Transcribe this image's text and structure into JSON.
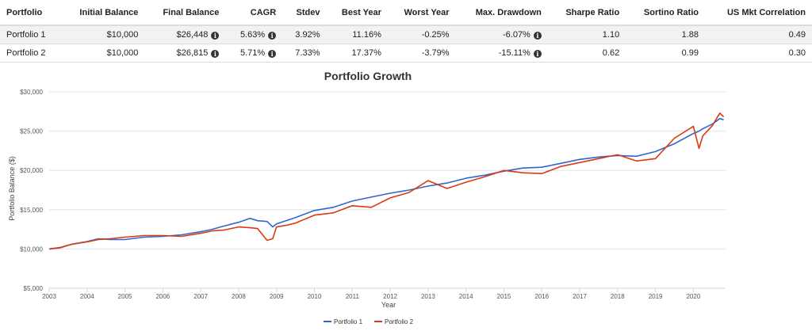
{
  "table": {
    "headers": [
      "Portfolio",
      "Initial Balance",
      "Final Balance",
      "CAGR",
      "Stdev",
      "Best Year",
      "Worst Year",
      "Max. Drawdown",
      "Sharpe Ratio",
      "Sortino Ratio",
      "US Mkt Correlation"
    ],
    "rows": [
      {
        "portfolio": "Portfolio 1",
        "initial": "$10,000",
        "final": "$26,448",
        "cagr": "5.63%",
        "stdev": "3.92%",
        "best": "11.16%",
        "worst": "-0.25%",
        "drawdown": "-6.07%",
        "sharpe": "1.10",
        "sortino": "1.88",
        "corr": "0.49"
      },
      {
        "portfolio": "Portfolio 2",
        "initial": "$10,000",
        "final": "$26,815",
        "cagr": "5.71%",
        "stdev": "7.33%",
        "best": "17.37%",
        "worst": "-3.79%",
        "drawdown": "-15.11%",
        "sharpe": "0.62",
        "sortino": "0.99",
        "corr": "0.30"
      }
    ],
    "info_icon": "info-circle-icon"
  },
  "chart_data": {
    "type": "line",
    "title": "Portfolio Growth",
    "xlabel": "Year",
    "ylabel": "Portfolio Balance ($)",
    "ylim": [
      5000,
      30000
    ],
    "xlim": [
      2003,
      2020.85
    ],
    "yticks": [
      "$5,000",
      "$10,000",
      "$15,000",
      "$20,000",
      "$25,000",
      "$30,000"
    ],
    "xticks": [
      "2003",
      "2004",
      "2005",
      "2006",
      "2007",
      "2008",
      "2009",
      "2010",
      "2011",
      "2012",
      "2013",
      "2014",
      "2015",
      "2016",
      "2017",
      "2018",
      "2019",
      "2020"
    ],
    "grid": true,
    "legend_position": "bottom",
    "series": [
      {
        "name": "Portfolio 1",
        "color": "#3366cc",
        "x": [
          2003.0,
          2003.3,
          2003.6,
          2004.0,
          2004.3,
          2004.6,
          2005.0,
          2005.5,
          2006.0,
          2006.5,
          2007.0,
          2007.3,
          2007.6,
          2008.0,
          2008.3,
          2008.5,
          2008.75,
          2008.9,
          2009.0,
          2009.25,
          2009.5,
          2010.0,
          2010.5,
          2011.0,
          2011.5,
          2012.0,
          2012.5,
          2013.0,
          2013.5,
          2014.0,
          2014.5,
          2015.0,
          2015.5,
          2016.0,
          2016.5,
          2017.0,
          2017.5,
          2018.0,
          2018.5,
          2019.0,
          2019.5,
          2020.0,
          2020.15,
          2020.25,
          2020.5,
          2020.7,
          2020.8
        ],
        "values": [
          10000,
          10150,
          10600,
          10950,
          11300,
          11200,
          11200,
          11500,
          11600,
          11800,
          12200,
          12500,
          12900,
          13400,
          13900,
          13600,
          13500,
          12800,
          13200,
          13600,
          14000,
          14900,
          15300,
          16100,
          16600,
          17100,
          17500,
          18000,
          18400,
          19000,
          19400,
          19900,
          20300,
          20400,
          20900,
          21400,
          21700,
          21900,
          21800,
          22400,
          23400,
          24700,
          25000,
          25300,
          25900,
          26600,
          26448
        ]
      },
      {
        "name": "Portfolio 2",
        "color": "#dc3912",
        "x": [
          2003.0,
          2003.3,
          2003.6,
          2004.0,
          2004.3,
          2004.6,
          2005.0,
          2005.5,
          2006.0,
          2006.5,
          2007.0,
          2007.3,
          2007.6,
          2008.0,
          2008.3,
          2008.5,
          2008.75,
          2008.9,
          2009.0,
          2009.25,
          2009.5,
          2010.0,
          2010.5,
          2011.0,
          2011.5,
          2012.0,
          2012.5,
          2013.0,
          2013.5,
          2014.0,
          2014.5,
          2015.0,
          2015.5,
          2016.0,
          2016.5,
          2017.0,
          2017.5,
          2018.0,
          2018.5,
          2019.0,
          2019.5,
          2020.0,
          2020.15,
          2020.25,
          2020.5,
          2020.7,
          2020.8
        ],
        "values": [
          10000,
          10200,
          10600,
          10900,
          11200,
          11300,
          11500,
          11700,
          11700,
          11600,
          12000,
          12300,
          12400,
          12800,
          12700,
          12600,
          11100,
          11300,
          12800,
          13000,
          13300,
          14300,
          14600,
          15500,
          15300,
          16500,
          17200,
          18700,
          17700,
          18500,
          19200,
          20000,
          19700,
          19600,
          20500,
          21000,
          21500,
          22000,
          21200,
          21500,
          24100,
          25600,
          22800,
          24400,
          25700,
          27300,
          26815
        ]
      }
    ]
  }
}
